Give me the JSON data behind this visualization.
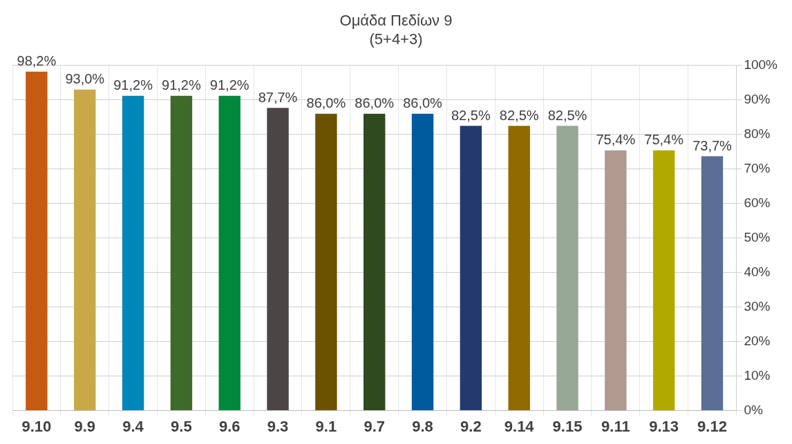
{
  "chart_data": {
    "type": "bar",
    "title": "Ομάδα Πεδίων 9\n(5+4+3)",
    "categories": [
      "9.10",
      "9.9",
      "9.4",
      "9.5",
      "9.6",
      "9.3",
      "9.1",
      "9.7",
      "9.8",
      "9.2",
      "9.14",
      "9.15",
      "9.11",
      "9.13",
      "9.12"
    ],
    "values": [
      98.2,
      93.0,
      91.2,
      91.2,
      91.2,
      87.7,
      86.0,
      86.0,
      86.0,
      82.5,
      82.5,
      82.5,
      75.4,
      75.4,
      73.7
    ],
    "value_labels": [
      "98,2%",
      "93,0%",
      "91,2%",
      "91,2%",
      "91,2%",
      "87,7%",
      "86,0%",
      "86,0%",
      "86,0%",
      "82,5%",
      "82,5%",
      "82,5%",
      "75,4%",
      "75,4%",
      "73,7%"
    ],
    "colors": [
      "#c55a11",
      "#c9a84a",
      "#0086b8",
      "#3e6b2a",
      "#00893c",
      "#4b4646",
      "#6b5200",
      "#2e4a1e",
      "#005a9e",
      "#243a6e",
      "#8f6a00",
      "#96a896",
      "#b09a90",
      "#b0aa00",
      "#5a6e96"
    ],
    "ylim": [
      0,
      100
    ],
    "yticks": [
      {
        "value": 0,
        "label": "0%"
      },
      {
        "value": 10,
        "label": "10%"
      },
      {
        "value": 20,
        "label": "20%"
      },
      {
        "value": 30,
        "label": "30%"
      },
      {
        "value": 40,
        "label": "40%"
      },
      {
        "value": 50,
        "label": "50%"
      },
      {
        "value": 60,
        "label": "60%"
      },
      {
        "value": 70,
        "label": "70%"
      },
      {
        "value": 80,
        "label": "80%"
      },
      {
        "value": 90,
        "label": "90%"
      },
      {
        "value": 100,
        "label": "100%"
      }
    ],
    "grid": true,
    "legend": false
  }
}
